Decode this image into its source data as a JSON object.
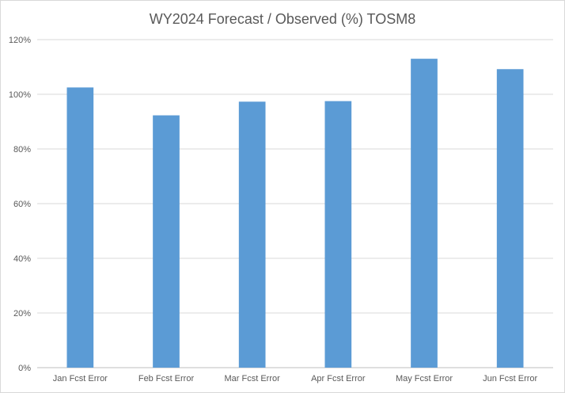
{
  "chart_data": {
    "type": "bar",
    "title": "WY2024 Forecast / Observed (%) TOSM8",
    "xlabel": "",
    "ylabel": "",
    "categories": [
      "Jan Fcst Error",
      "Feb Fcst Error",
      "Mar Fcst Error",
      "Apr Fcst Error",
      "May Fcst Error",
      "Jun Fcst Error"
    ],
    "values": [
      102.5,
      92.3,
      97.3,
      97.5,
      113,
      109.2
    ],
    "ylim": [
      0,
      120
    ],
    "yticks": [
      0,
      20,
      40,
      60,
      80,
      100,
      120
    ],
    "ytick_labels": [
      "0%",
      "20%",
      "40%",
      "60%",
      "80%",
      "100%",
      "120%"
    ],
    "grid": true,
    "legend": "none",
    "colors": {
      "bar": "#5b9bd5",
      "grid": "#d9d9d9",
      "text": "#595959"
    }
  }
}
